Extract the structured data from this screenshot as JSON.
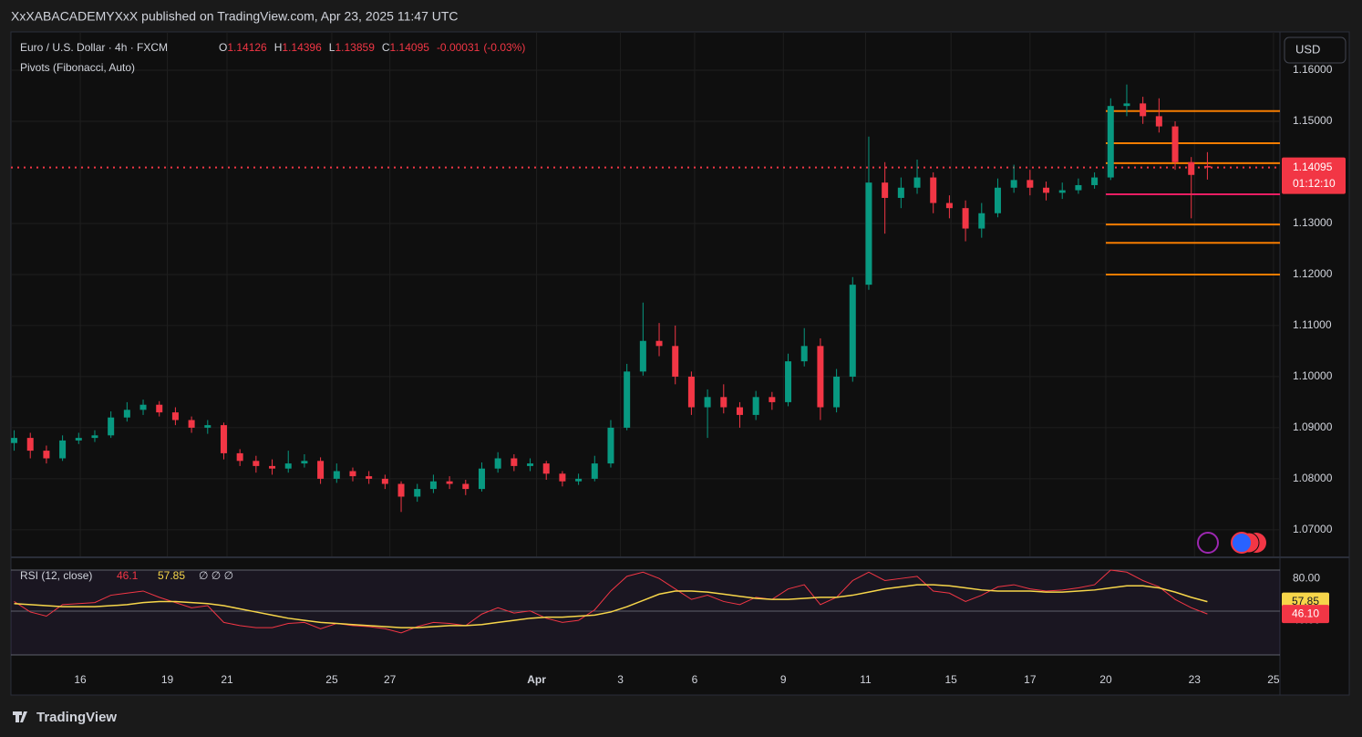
{
  "header": {
    "publisher": "XxXABACADEMYXxX published on TradingView.com, Apr 23, 2025 11:47 UTC",
    "brand": "TradingView"
  },
  "chart_data": [
    {
      "type": "candlestick",
      "title": "Euro / U.S. Dollar · 4h · FXCM",
      "ohlc_legend": [
        {
          "label": "O",
          "value": 1.14126
        },
        {
          "label": "H",
          "value": 1.14396
        },
        {
          "label": "L",
          "value": 1.13859
        },
        {
          "label": "C",
          "value": 1.14095
        }
      ],
      "change": -0.00031,
      "change_label": "(-0.03%)",
      "indicator": "Pivots (Fibonacci, Auto)",
      "currency": "USD",
      "last_price": 1.14095,
      "countdown": "01:12:10",
      "up_color": "#089981",
      "down_color": "#f23645",
      "open": [
        1.087,
        1.088,
        1.0855,
        1.084,
        1.0875,
        1.088,
        1.0885,
        1.092,
        1.0935,
        1.0945,
        1.093,
        1.0915,
        1.09,
        1.0905,
        1.085,
        1.0835,
        1.0825,
        1.082,
        1.083,
        1.0835,
        1.08,
        1.0815,
        1.0805,
        1.08,
        1.079,
        1.0765,
        1.078,
        1.0795,
        1.079,
        1.078,
        1.082,
        1.084,
        1.0825,
        1.083,
        1.081,
        1.0795,
        1.08,
        1.083,
        1.09,
        1.101,
        1.107,
        1.106,
        1.1,
        1.094,
        1.096,
        1.094,
        1.0925,
        1.096,
        1.095,
        1.103,
        1.106,
        1.094,
        1.1,
        1.118,
        1.138,
        1.135,
        1.137,
        1.139,
        1.134,
        1.133,
        1.129,
        1.132,
        1.137,
        1.1385,
        1.137,
        1.136,
        1.1365,
        1.1375,
        1.139,
        1.153,
        1.1535,
        1.151,
        1.149,
        1.142,
        1.14126
      ],
      "high": [
        1.0895,
        1.089,
        1.0865,
        1.0885,
        1.089,
        1.0895,
        1.0932,
        1.095,
        1.0955,
        1.0952,
        1.094,
        1.0922,
        1.0915,
        1.091,
        1.0858,
        1.0845,
        1.0838,
        1.0855,
        1.0848,
        1.0842,
        1.083,
        1.0822,
        1.0815,
        1.0808,
        1.0795,
        1.079,
        1.0808,
        1.0805,
        1.0798,
        1.0832,
        1.0852,
        1.0848,
        1.084,
        1.0835,
        1.0815,
        1.081,
        1.0845,
        1.0915,
        1.1025,
        1.1145,
        1.1105,
        1.11,
        1.101,
        1.0975,
        1.0985,
        1.095,
        1.0972,
        1.097,
        1.1045,
        1.1095,
        1.1075,
        1.1015,
        1.1195,
        1.147,
        1.142,
        1.139,
        1.1425,
        1.14,
        1.1355,
        1.1345,
        1.134,
        1.1388,
        1.1415,
        1.1405,
        1.1382,
        1.138,
        1.1388,
        1.14,
        1.1545,
        1.1572,
        1.1548,
        1.1545,
        1.15,
        1.143,
        1.14396
      ],
      "low": [
        1.0855,
        1.084,
        1.083,
        1.0835,
        1.0868,
        1.0872,
        1.088,
        1.0912,
        1.0925,
        1.0922,
        1.0905,
        1.089,
        1.0888,
        1.0838,
        1.0825,
        1.0812,
        1.0808,
        1.0812,
        1.0822,
        1.079,
        1.0792,
        1.0795,
        1.079,
        1.078,
        1.0735,
        1.0755,
        1.0772,
        1.078,
        1.0768,
        1.0775,
        1.0812,
        1.0815,
        1.0815,
        1.0798,
        1.0785,
        1.0788,
        1.0795,
        1.0822,
        1.0895,
        1.1002,
        1.104,
        1.0985,
        1.0925,
        1.088,
        1.0928,
        1.09,
        1.0915,
        1.0935,
        1.0942,
        1.102,
        1.0915,
        1.093,
        1.099,
        1.117,
        1.128,
        1.133,
        1.1358,
        1.132,
        1.131,
        1.1265,
        1.1272,
        1.1312,
        1.136,
        1.1355,
        1.1345,
        1.1348,
        1.1358,
        1.1368,
        1.1385,
        1.151,
        1.1495,
        1.1478,
        1.1405,
        1.131,
        1.13859
      ],
      "close": [
        1.088,
        1.0855,
        1.084,
        1.0875,
        1.088,
        1.0885,
        1.092,
        1.0935,
        1.0945,
        1.093,
        1.0915,
        1.09,
        1.0905,
        1.085,
        1.0835,
        1.0825,
        1.082,
        1.083,
        1.0835,
        1.08,
        1.0815,
        1.0805,
        1.08,
        1.079,
        1.0765,
        1.078,
        1.0795,
        1.079,
        1.078,
        1.082,
        1.084,
        1.0825,
        1.083,
        1.081,
        1.0795,
        1.08,
        1.083,
        1.09,
        1.101,
        1.107,
        1.106,
        1.1,
        1.094,
        1.096,
        1.094,
        1.0925,
        1.096,
        1.095,
        1.103,
        1.106,
        1.094,
        1.1,
        1.118,
        1.138,
        1.135,
        1.137,
        1.139,
        1.134,
        1.133,
        1.129,
        1.132,
        1.137,
        1.1385,
        1.137,
        1.136,
        1.1365,
        1.1375,
        1.139,
        1.153,
        1.1535,
        1.151,
        1.149,
        1.142,
        1.1395,
        1.14095
      ],
      "pivot_levels": [
        1.152,
        1.1457,
        1.1418,
        1.1357,
        1.1298,
        1.1262,
        1.12
      ],
      "pivot_colors": [
        "#f57c00",
        "#f57c00",
        "#f57c00",
        "#e91e63",
        "#f57c00",
        "#f57c00",
        "#f57c00"
      ],
      "xlim": [
        -0.2,
        78.5
      ],
      "xticks": [
        {
          "value": 4.1,
          "label": "16"
        },
        {
          "value": 9.5,
          "label": "19"
        },
        {
          "value": 13.2,
          "label": "21"
        },
        {
          "value": 19.7,
          "label": "25"
        },
        {
          "value": 23.3,
          "label": "27"
        },
        {
          "value": 32.4,
          "label": "Apr"
        },
        {
          "value": 37.6,
          "label": "3"
        },
        {
          "value": 42.2,
          "label": "6"
        },
        {
          "value": 47.7,
          "label": "9"
        },
        {
          "value": 52.8,
          "label": "11"
        },
        {
          "value": 58.1,
          "label": "15"
        },
        {
          "value": 63.0,
          "label": "17"
        },
        {
          "value": 67.7,
          "label": "20"
        },
        {
          "value": 73.2,
          "label": "23"
        },
        {
          "value": 78.1,
          "label": "25"
        }
      ],
      "ylim": [
        1.0648,
        1.1675
      ],
      "yticks": [
        {
          "value": 1.16,
          "label": "1.16000"
        },
        {
          "value": 1.15,
          "label": "1.15000"
        },
        {
          "value": 1.13,
          "label": "1.13000"
        },
        {
          "value": 1.12,
          "label": "1.12000"
        },
        {
          "value": 1.11,
          "label": "1.11000"
        },
        {
          "value": 1.1,
          "label": "1.10000"
        },
        {
          "value": 1.09,
          "label": "1.09000"
        },
        {
          "value": 1.08,
          "label": "1.08000"
        },
        {
          "value": 1.07,
          "label": "1.07000"
        }
      ],
      "grid": true
    },
    {
      "type": "line",
      "title": "RSI (12, close)",
      "extra": "∅ ∅ ∅",
      "series": [
        {
          "color": "#f23645",
          "last_value": 46.1,
          "last_label": "46.10",
          "values": [
            58,
            48,
            44,
            55,
            56,
            57,
            64,
            66,
            68,
            62,
            57,
            52,
            54,
            38,
            35,
            33,
            33,
            37,
            38,
            32,
            37,
            35,
            34,
            32,
            28,
            34,
            38,
            37,
            35,
            46,
            52,
            47,
            49,
            42,
            38,
            40,
            50,
            68,
            82,
            86,
            80,
            70,
            60,
            64,
            58,
            55,
            62,
            60,
            70,
            74,
            55,
            62,
            78,
            86,
            78,
            80,
            82,
            68,
            66,
            58,
            64,
            72,
            74,
            70,
            68,
            69,
            71,
            74,
            88,
            86,
            78,
            72,
            60,
            52,
            46.1
          ]
        },
        {
          "color": "#f7d64a",
          "last_value": 57.85,
          "values": [
            56,
            55,
            54,
            53,
            53,
            53,
            54,
            55,
            57,
            58,
            58,
            57,
            56,
            54,
            51,
            48,
            45,
            42,
            40,
            38,
            37,
            36,
            35,
            34,
            33,
            33,
            34,
            35,
            35,
            36,
            38,
            40,
            42,
            43,
            43,
            44,
            45,
            48,
            53,
            59,
            65,
            68,
            68,
            67,
            65,
            63,
            61,
            60,
            60,
            61,
            62,
            62,
            64,
            67,
            70,
            72,
            74,
            74,
            73,
            71,
            69,
            68,
            68,
            68,
            67,
            67,
            68,
            69,
            71,
            73,
            73,
            71,
            67,
            62,
            57.85
          ]
        }
      ],
      "ylim": [
        7,
        88
      ],
      "yticks": [
        {
          "value": 80,
          "label": "80.00"
        },
        {
          "value": 40,
          "label": "40.00"
        }
      ]
    }
  ]
}
